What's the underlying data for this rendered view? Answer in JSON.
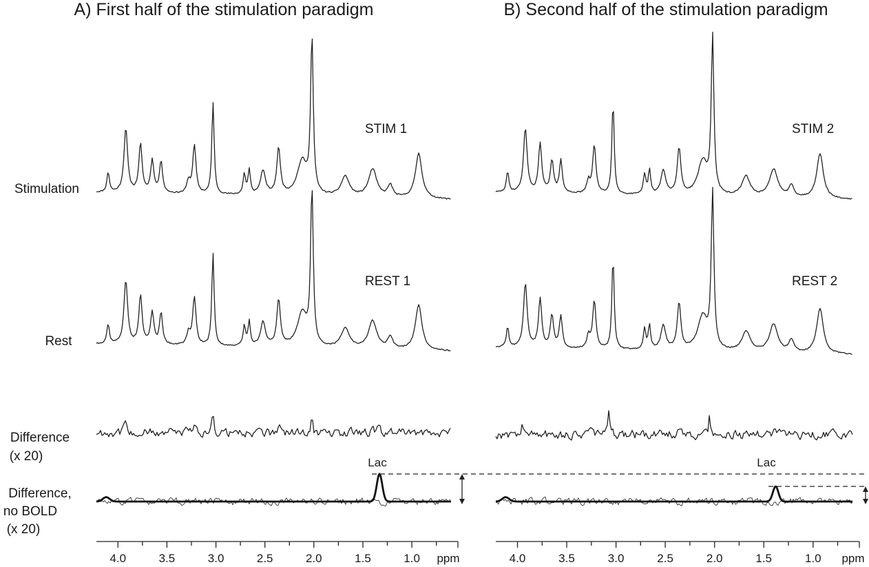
{
  "chart_data": {
    "type": "line",
    "x_unit": "ppm",
    "x_range": [
      4.25,
      0.6
    ],
    "x_ticks": [
      "4.0",
      "3.5",
      "3.0",
      "2.5",
      "2.0",
      "1.5",
      "1.0"
    ],
    "row_labels": {
      "stimulation": "Stimulation",
      "rest": "Rest",
      "difference_line1": "Difference",
      "difference_line2": "(x 20)",
      "nobold_line1": "Difference,",
      "nobold_line2": "no BOLD",
      "nobold_line3": "(x 20)"
    },
    "lac_label": "Lac",
    "metabolite_peaks_ppm": [
      {
        "ppm": 4.1,
        "height": 0.2,
        "width": 0.015
      },
      {
        "ppm": 3.92,
        "height": 0.64,
        "width": 0.022
      },
      {
        "ppm": 3.77,
        "height": 0.48,
        "width": 0.02
      },
      {
        "ppm": 3.65,
        "height": 0.32,
        "width": 0.02
      },
      {
        "ppm": 3.56,
        "height": 0.32,
        "width": 0.018
      },
      {
        "ppm": 3.28,
        "height": 0.12,
        "width": 0.02
      },
      {
        "ppm": 3.22,
        "height": 0.48,
        "width": 0.02
      },
      {
        "ppm": 3.03,
        "height": 0.92,
        "width": 0.014
      },
      {
        "ppm": 2.71,
        "height": 0.2,
        "width": 0.015
      },
      {
        "ppm": 2.66,
        "height": 0.24,
        "width": 0.014
      },
      {
        "ppm": 2.52,
        "height": 0.24,
        "width": 0.03
      },
      {
        "ppm": 2.36,
        "height": 0.46,
        "width": 0.022
      },
      {
        "ppm": 2.12,
        "height": 0.34,
        "width": 0.06
      },
      {
        "ppm": 2.02,
        "height": 1.55,
        "width": 0.016
      },
      {
        "ppm": 1.68,
        "height": 0.2,
        "width": 0.05
      },
      {
        "ppm": 1.4,
        "height": 0.28,
        "width": 0.05
      },
      {
        "ppm": 1.22,
        "height": 0.12,
        "width": 0.03
      },
      {
        "ppm": 0.93,
        "height": 0.45,
        "width": 0.04
      }
    ],
    "panels": [
      {
        "title": "A)  First half of the stimulation paradigm",
        "stim_label": "STIM 1",
        "rest_label": "REST 1",
        "difference_peaks_ppm": [
          {
            "ppm": 3.92,
            "height": 0.38,
            "width": 0.015
          },
          {
            "ppm": 3.22,
            "height": 0.3,
            "width": 0.015
          },
          {
            "ppm": 3.03,
            "height": 0.9,
            "width": 0.01
          },
          {
            "ppm": 2.36,
            "height": 0.22,
            "width": 0.015
          },
          {
            "ppm": 2.02,
            "height": 1.0,
            "width": 0.008
          },
          {
            "ppm": 1.33,
            "height": 0.35,
            "width": 0.02
          }
        ],
        "nobold_lac_ppm": 1.33,
        "nobold_lac_height": 1.0,
        "nobold_small_peak_ppm": 4.12
      },
      {
        "title": "B)  Second half of the stimulation paradigm",
        "stim_label": "STIM 2",
        "rest_label": "REST 2",
        "difference_peaks_ppm": [
          {
            "ppm": 3.95,
            "height": 0.35,
            "width": 0.015
          },
          {
            "ppm": 3.25,
            "height": 0.3,
            "width": 0.015
          },
          {
            "ppm": 3.07,
            "height": 0.9,
            "width": 0.01
          },
          {
            "ppm": 2.37,
            "height": 0.25,
            "width": 0.015
          },
          {
            "ppm": 2.05,
            "height": 1.05,
            "width": 0.008
          },
          {
            "ppm": 1.38,
            "height": 0.15,
            "width": 0.03
          }
        ],
        "nobold_lac_ppm": 1.38,
        "nobold_lac_height": 0.55,
        "nobold_small_peak_ppm": 4.12
      }
    ]
  }
}
